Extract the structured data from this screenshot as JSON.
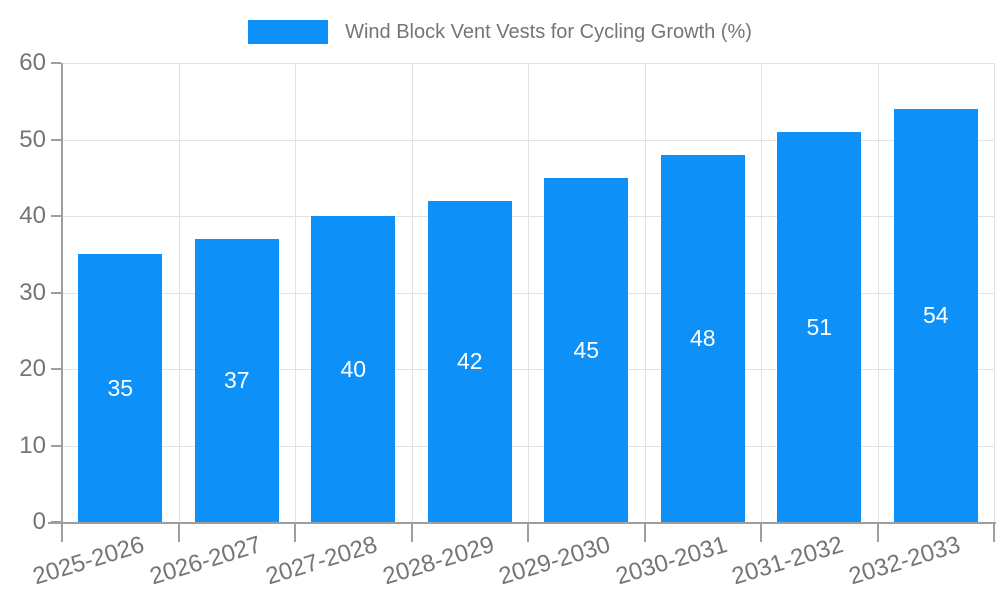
{
  "chart_data": {
    "type": "bar",
    "title": "Wind Block Vent Vests for Cycling Growth (%)",
    "legend": {
      "position": "top-center",
      "entries": [
        "Wind Block Vent Vests for Cycling Growth (%)"
      ]
    },
    "categories": [
      "2025-2026",
      "2026-2027",
      "2027-2028",
      "2028-2029",
      "2029-2030",
      "2030-2031",
      "2031-2032",
      "2032-2033"
    ],
    "values": [
      35,
      37,
      40,
      42,
      45,
      48,
      51,
      54
    ],
    "xlabel": "",
    "ylabel": "",
    "ylim": [
      0,
      60
    ],
    "ytick_step": 10,
    "yticks": [
      0,
      10,
      20,
      30,
      40,
      50,
      60
    ],
    "grid": true,
    "bar_color": "#0D90F8",
    "value_label_color": "#ffffff",
    "text_color": "#757575",
    "axis_color": "#9e9e9e",
    "grid_color": "#e2e2e2",
    "x_label_rotation_deg": -17
  }
}
